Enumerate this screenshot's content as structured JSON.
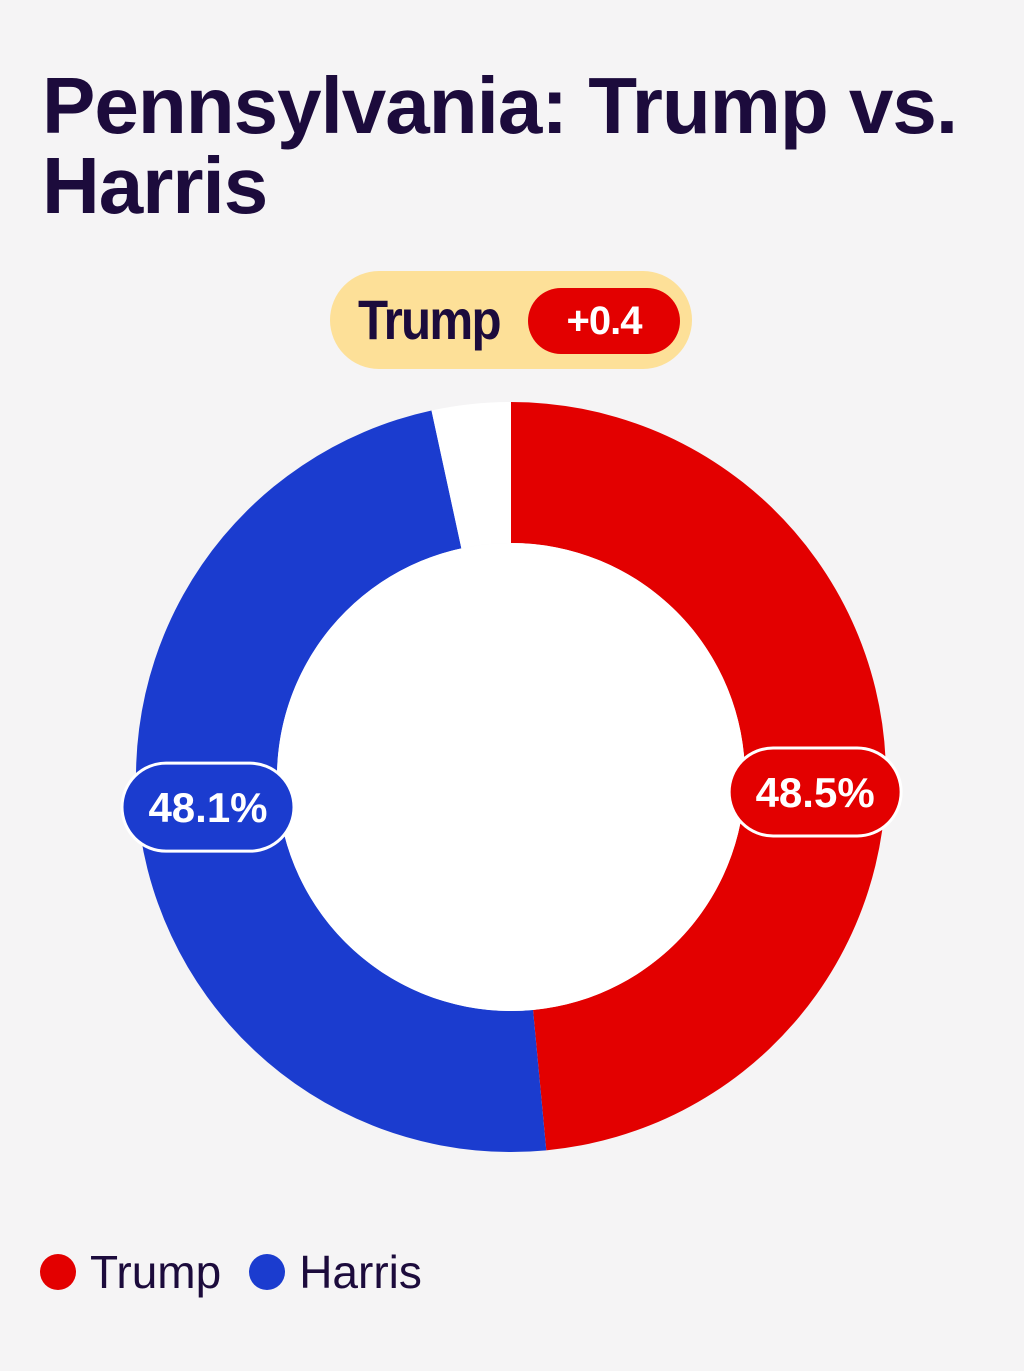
{
  "title": "Pennsylvania: Trump vs. Harris",
  "lead": {
    "candidate": "Trump",
    "margin": "+0.4",
    "pill_color": "#fde098",
    "margin_color": "#e30000"
  },
  "chart_data": {
    "type": "pie",
    "title": "Pennsylvania: Trump vs. Harris",
    "series": [
      {
        "name": "Trump",
        "value": 48.5,
        "label": "48.5%",
        "color": "#e30000"
      },
      {
        "name": "Harris",
        "value": 48.1,
        "label": "48.1%",
        "color": "#1b3ccf"
      }
    ],
    "remainder": {
      "value": 3.4,
      "color": "#ffffff"
    },
    "legend_position": "bottom-left"
  }
}
